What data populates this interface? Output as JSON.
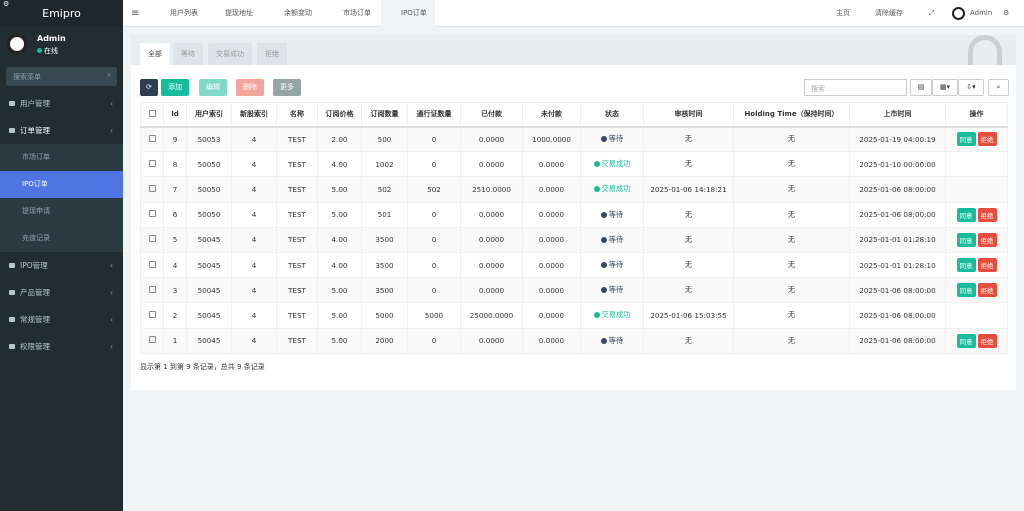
{
  "sidebar": {
    "brand": "Emipro",
    "user": {
      "name": "Admin",
      "status": "在线"
    },
    "search_placeholder": "搜索菜单",
    "menu": [
      {
        "label": "用户管理"
      },
      {
        "label": "订单管理",
        "children": [
          "市场订单",
          "IPO订单",
          "提现申请",
          "充值记录"
        ]
      },
      {
        "label": "IPO管理"
      },
      {
        "label": "产品管理"
      },
      {
        "label": "常规管理"
      },
      {
        "label": "权限管理"
      }
    ]
  },
  "topbar": {
    "tabs": [
      "用户列表",
      "提现地址",
      "余额变动",
      "市场订单",
      "IPO订单"
    ],
    "links": [
      "主页",
      "清除缓存"
    ],
    "user": "Admin"
  },
  "content": {
    "filter_tabs": [
      "全部",
      "等待",
      "交易成功",
      "拒绝"
    ],
    "toolbar": [
      "添加",
      "编辑",
      "删除",
      "更多"
    ],
    "search_placeholder": "搜索",
    "table": {
      "columns": [
        "Id",
        "用户索引",
        "新股索引",
        "名称",
        "订阅价格",
        "订阅数量",
        "通行证数量",
        "已付款",
        "未付款",
        "状态",
        "审核时间",
        "Holding Time（保持时间）",
        "上市时间",
        "操作"
      ],
      "rows": [
        {
          "cells": [
            "9",
            "50053",
            "4",
            "TEST",
            "2.00",
            "500",
            "0",
            "0.0000",
            "1000.0000"
          ],
          "status": {
            "text": "等待",
            "color": "#34495e"
          },
          "after": [
            "无",
            "无",
            "2025-01-19 04:00:19"
          ],
          "actions": [
            "同意",
            "拒绝"
          ]
        },
        {
          "cells": [
            "8",
            "50050",
            "4",
            "TEST",
            "4.00",
            "1002",
            "0",
            "0.0000",
            "0.0000"
          ],
          "status": {
            "text": "交易成功",
            "color": "#18bc9c"
          },
          "after": [
            "无",
            "无",
            "2025-01-10 00:00:00"
          ],
          "actions": []
        },
        {
          "cells": [
            "7",
            "50050",
            "4",
            "TEST",
            "5.00",
            "502",
            "502",
            "2510.0000",
            "0.0000"
          ],
          "status": {
            "text": "交易成功",
            "color": "#18bc9c"
          },
          "after": [
            "2025-01-06 14:18:21",
            "无",
            "2025-01-06 08:00:00"
          ],
          "actions": []
        },
        {
          "cells": [
            "6",
            "50050",
            "4",
            "TEST",
            "5.00",
            "501",
            "0",
            "0.0000",
            "0.0000"
          ],
          "status": {
            "text": "等待",
            "color": "#34495e"
          },
          "after": [
            "无",
            "无",
            "2025-01-06 08:00:00"
          ],
          "actions": [
            "同意",
            "拒绝"
          ]
        },
        {
          "cells": [
            "5",
            "50045",
            "4",
            "TEST",
            "4.00",
            "3500",
            "0",
            "0.0000",
            "0.0000"
          ],
          "status": {
            "text": "等待",
            "color": "#34495e"
          },
          "after": [
            "无",
            "无",
            "2025-01-01 01:28:10"
          ],
          "actions": [
            "同意",
            "拒绝"
          ]
        },
        {
          "cells": [
            "4",
            "50045",
            "4",
            "TEST",
            "4.00",
            "3500",
            "0",
            "0.0000",
            "0.0000"
          ],
          "status": {
            "text": "等待",
            "color": "#34495e"
          },
          "after": [
            "无",
            "无",
            "2025-01-01 01:28:10"
          ],
          "actions": [
            "同意",
            "拒绝"
          ]
        },
        {
          "cells": [
            "3",
            "50045",
            "4",
            "TEST",
            "5.00",
            "3500",
            "0",
            "0.0000",
            "0.0000"
          ],
          "status": {
            "text": "等待",
            "color": "#34495e"
          },
          "after": [
            "无",
            "无",
            "2025-01-06 08:00:00"
          ],
          "actions": [
            "同意",
            "拒绝"
          ]
        },
        {
          "cells": [
            "2",
            "50045",
            "4",
            "TEST",
            "5.00",
            "5000",
            "5000",
            "25000.0000",
            "0.0000"
          ],
          "status": {
            "text": "交易成功",
            "color": "#18bc9c"
          },
          "after": [
            "2025-01-06 15:03:55",
            "无",
            "2025-01-06 08:00:00"
          ],
          "actions": []
        },
        {
          "cells": [
            "1",
            "50045",
            "4",
            "TEST",
            "5.00",
            "2000",
            "0",
            "0.0000",
            "0.0000"
          ],
          "status": {
            "text": "等待",
            "color": "#34495e"
          },
          "after": [
            "无",
            "无",
            "2025-01-06 08:00:00"
          ],
          "actions": [
            "同意",
            "拒绝"
          ]
        }
      ]
    },
    "footer": "显示第 1 到第 9 条记录，总共 9 条记录"
  }
}
